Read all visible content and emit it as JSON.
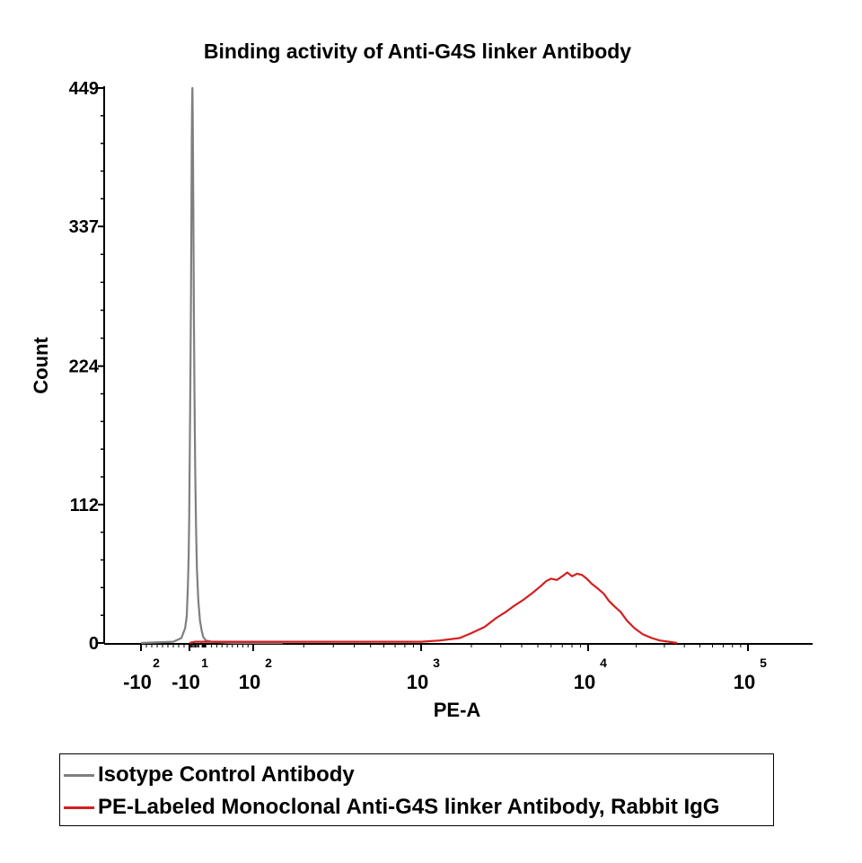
{
  "chart_data": {
    "type": "line",
    "title": "Binding activity of Anti-G4S linker Antibody",
    "xlabel": "PE-A",
    "ylabel": "Count",
    "x_scale": "biexponential (log above 10^2)",
    "ylim": [
      0,
      449
    ],
    "yticks": [
      "0",
      "112",
      "224",
      "337",
      "449"
    ],
    "xticks": [
      {
        "base": "-10",
        "exp": "2",
        "value": -100
      },
      {
        "base": "-10",
        "exp": "1",
        "value": -10
      },
      {
        "base": "10",
        "exp": "2",
        "value": 100
      },
      {
        "base": "10",
        "exp": "3",
        "value": 1000
      },
      {
        "base": "10",
        "exp": "4",
        "value": 10000
      },
      {
        "base": "10",
        "exp": "5",
        "value": 100000
      }
    ],
    "grid": false,
    "legend_position": "bottom",
    "series": [
      {
        "name": "Isotype Control Antibody",
        "color": "#7f7f7f",
        "points": [
          [
            -100,
            0
          ],
          [
            -40,
            1
          ],
          [
            -25,
            4
          ],
          [
            -18,
            12
          ],
          [
            -15,
            22
          ],
          [
            -13,
            45
          ],
          [
            -11.5,
            70
          ],
          [
            -10.5,
            100
          ],
          [
            -9.8,
            150
          ],
          [
            -9.2,
            210
          ],
          [
            -8.7,
            280
          ],
          [
            -8.3,
            350
          ],
          [
            -8,
            410
          ],
          [
            -7.7,
            440
          ],
          [
            -7.5,
            449
          ],
          [
            -7.2,
            430
          ],
          [
            -7,
            400
          ],
          [
            -6.6,
            340
          ],
          [
            -6.2,
            270
          ],
          [
            -5.7,
            200
          ],
          [
            -5.1,
            140
          ],
          [
            -4.4,
            95
          ],
          [
            -3.6,
            60
          ],
          [
            -2.5,
            35
          ],
          [
            -1,
            18
          ],
          [
            1,
            10
          ],
          [
            4,
            5
          ],
          [
            9,
            2
          ],
          [
            20,
            1
          ],
          [
            60,
            0
          ],
          [
            150,
            0
          ]
        ]
      },
      {
        "name": "PE-Labeled Monoclonal Anti-G4S linker Antibody, Rabbit IgG",
        "color": "#d41f1f",
        "points": [
          [
            -10,
            0
          ],
          [
            -5,
            1
          ],
          [
            0,
            1
          ],
          [
            20,
            1
          ],
          [
            100,
            1
          ],
          [
            300,
            1
          ],
          [
            1000,
            1
          ],
          [
            1300,
            2
          ],
          [
            1700,
            4
          ],
          [
            2000,
            8
          ],
          [
            2400,
            13
          ],
          [
            2800,
            20
          ],
          [
            3200,
            25
          ],
          [
            3600,
            30
          ],
          [
            4000,
            34
          ],
          [
            4600,
            40
          ],
          [
            5200,
            46
          ],
          [
            5600,
            50
          ],
          [
            6000,
            52
          ],
          [
            6500,
            51
          ],
          [
            7000,
            54
          ],
          [
            7500,
            57
          ],
          [
            8000,
            54
          ],
          [
            8600,
            56
          ],
          [
            9200,
            55
          ],
          [
            9800,
            52
          ],
          [
            10500,
            48
          ],
          [
            11500,
            44
          ],
          [
            12500,
            40
          ],
          [
            13500,
            34
          ],
          [
            14500,
            30
          ],
          [
            16000,
            25
          ],
          [
            17500,
            18
          ],
          [
            19500,
            12
          ],
          [
            22000,
            7
          ],
          [
            25000,
            4
          ],
          [
            28000,
            2
          ],
          [
            32000,
            1
          ],
          [
            36000,
            0
          ]
        ]
      }
    ]
  }
}
